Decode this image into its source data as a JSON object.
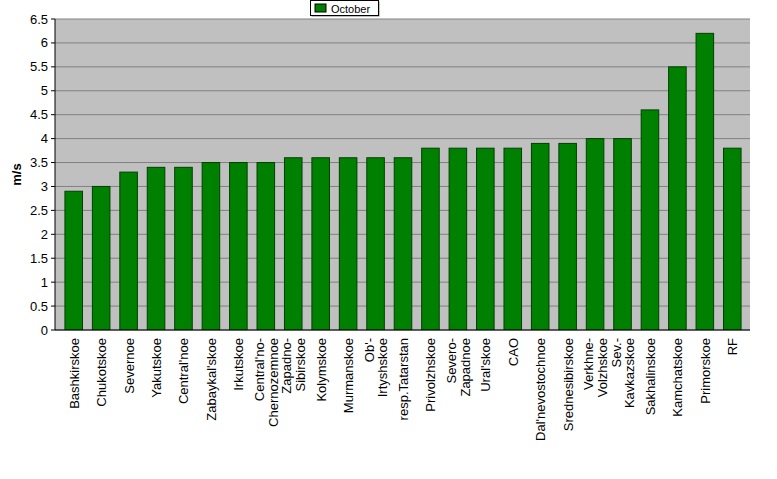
{
  "chart_data": {
    "type": "bar",
    "y_label": "m/s",
    "categories": [
      "Bashkirskoe",
      "Chukotskoe",
      "Severnoe",
      "Yakutskoe",
      "Central'noe",
      "Zabaykal'skoe",
      "Irkutskoe",
      "Central'no-\nChernozemnoe",
      "Zapadno-\nSibirskoe",
      "Kolymskoe",
      "Murmanskoe",
      "Ob'-\nIrtyshskoe",
      "resp.Tatarstan",
      "Privolzhskoe",
      "Severo-\nZapadnoe",
      "Ural'skoe",
      "CAO",
      "Dal'nevostochnoe",
      "Srednesibirskoe",
      "Verkhne-\nVolzhskoe",
      "Sev.-\nKavkazskoe",
      "Sakhalinskoe",
      "Kamchatskoe",
      "Primorskoe",
      "RF"
    ],
    "series": [
      {
        "name": "October",
        "color": "#008000",
        "values": [
          2.9,
          3.0,
          3.3,
          3.4,
          3.4,
          3.5,
          3.5,
          3.5,
          3.6,
          3.6,
          3.6,
          3.6,
          3.6,
          3.8,
          3.8,
          3.8,
          3.8,
          3.9,
          3.9,
          4.0,
          4.0,
          4.6,
          5.5,
          6.2,
          3.8
        ]
      }
    ],
    "ylim": [
      0,
      6.5
    ],
    "yticks": [
      0,
      0.5,
      1,
      1.5,
      2,
      2.5,
      3,
      3.5,
      4,
      4.5,
      5,
      5.5,
      6,
      6.5
    ],
    "grid": true,
    "legend": "top"
  }
}
